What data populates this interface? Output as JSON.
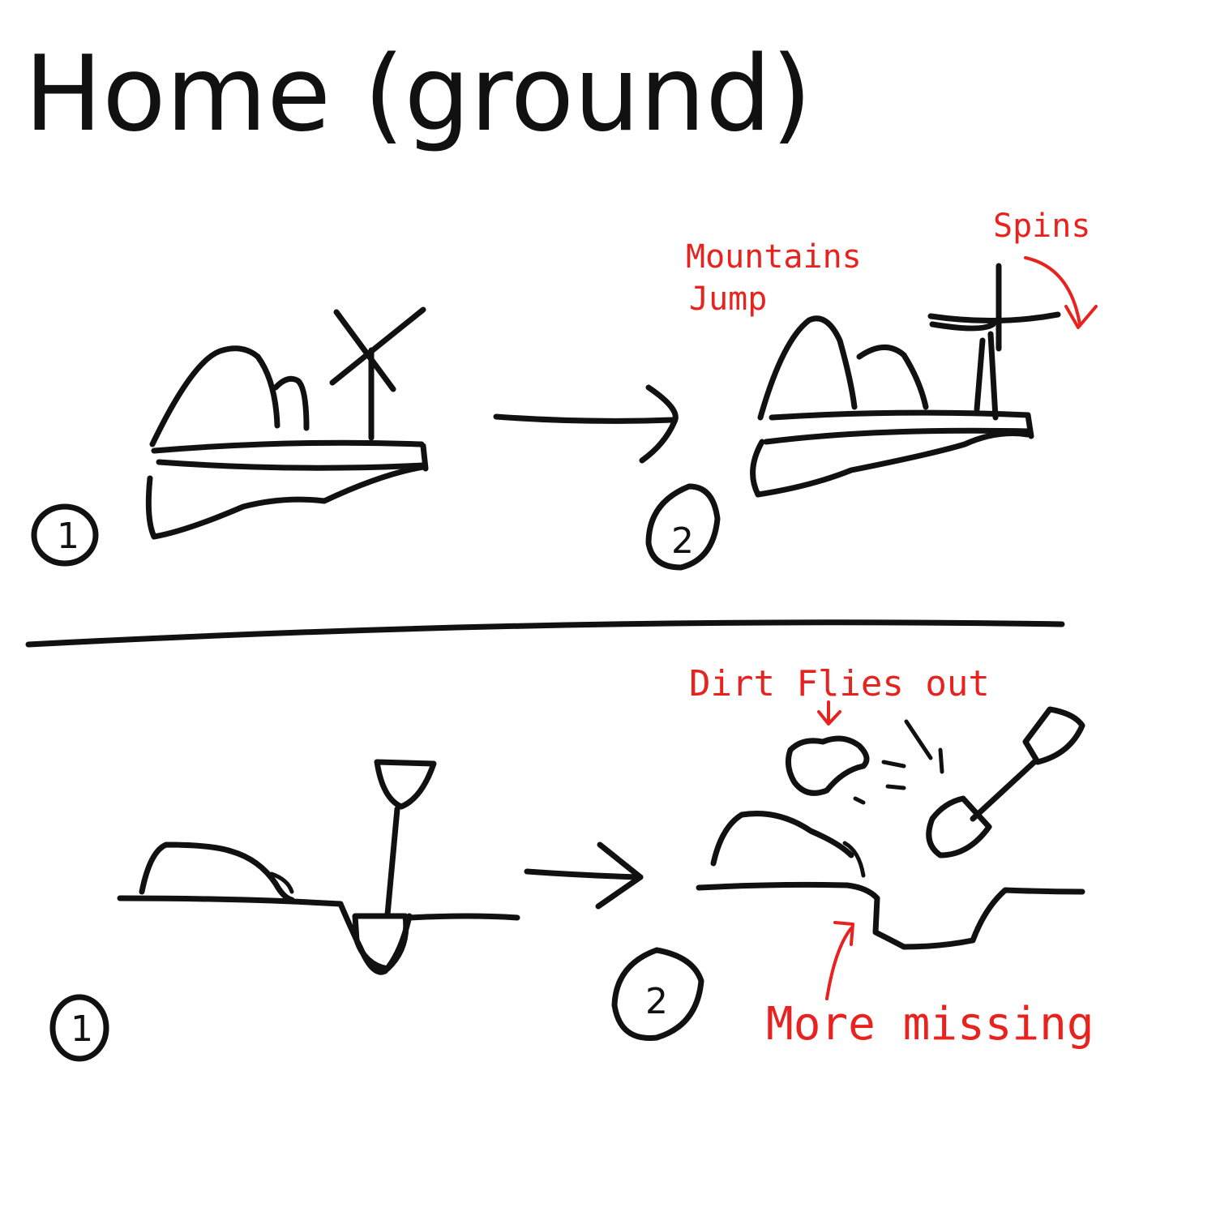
{
  "title": "Home (ground)",
  "colors": {
    "ink": "#111111",
    "annotation": "#e8231f",
    "paper": "#ffffff"
  },
  "panels": {
    "top": {
      "step1": "1",
      "step2": "2",
      "annotations": {
        "mountains_jump": [
          "Mountains",
          "Jump"
        ],
        "spins": "Spins"
      }
    },
    "bottom": {
      "step1": "1",
      "step2": "2",
      "annotations": {
        "dirt_flies_out": "Dirt Flies out",
        "more_missing": "More missing"
      }
    }
  }
}
